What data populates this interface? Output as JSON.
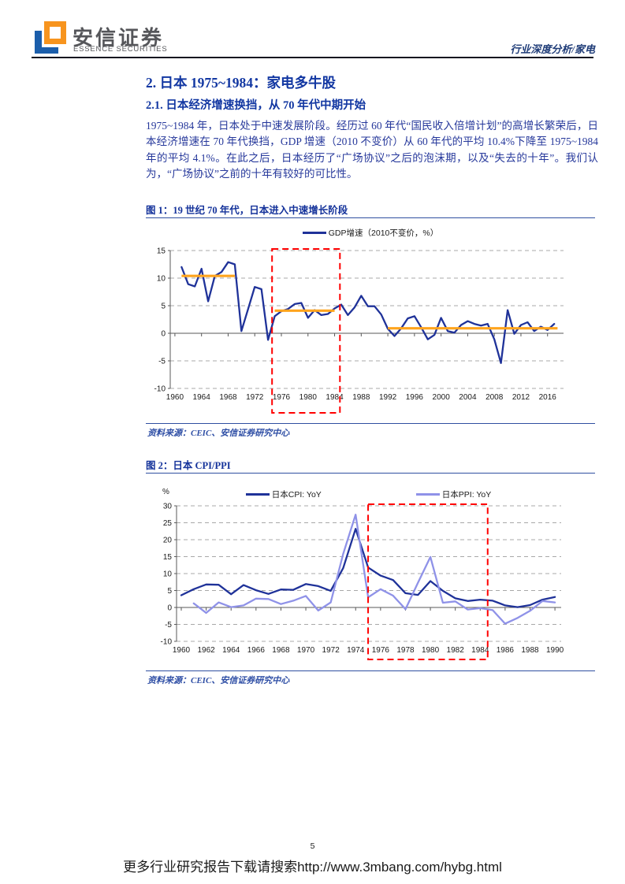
{
  "header": {
    "brand_cn": "安信证券",
    "brand_en": "ESSENCE SECURITIES",
    "doc_type": "行业深度分析/家电"
  },
  "content": {
    "section_title": "2. 日本 1975~1984：家电多牛股",
    "subsection_title": "2.1. 日本经济增速换挡，从 70 年代中期开始",
    "paragraph": "1975~1984 年，日本处于中速发展阶段。经历过 60 年代“国民收入倍增计划”的高增长繁荣后，日本经济增速在 70 年代换挡，GDP 增速（2010 不变价）从 60 年代的平均 10.4%下降至 1975~1984 年的平均 4.1%。在此之后，日本经历了“广场协议”之后的泡沫期，以及“失去的十年”。我们认为，“广场协议”之前的十年有较好的可比性。"
  },
  "figures": [
    {
      "caption": "图 1：19 世纪 70 年代，日本进入中速增长阶段",
      "source": "资料来源：CEIC、安信证券研究中心"
    },
    {
      "caption": "图 2：日本 CPI/PPI",
      "source": "资料来源：CEIC、安信证券研究中心"
    }
  ],
  "footer": {
    "page_number": "5",
    "download_note": "更多行业研究报告下载请搜索http://www.3mbang.com/hybg.html"
  },
  "chart_data": [
    {
      "type": "line",
      "title": "",
      "legend_position": "top-center",
      "grid": "horizontal-dashed",
      "ylim": [
        -10,
        15
      ],
      "yticks": [
        15,
        10,
        5,
        0,
        -5,
        -10
      ],
      "xlim": [
        1959.3,
        2018.4
      ],
      "xticks": [
        1960,
        1964,
        1968,
        1972,
        1976,
        1980,
        1984,
        1988,
        1992,
        1996,
        2000,
        2004,
        2008,
        2012,
        2016
      ],
      "series": [
        {
          "name": "GDP增速（2010不变价，%）",
          "color": "#1f3299",
          "x_start": 1961,
          "x_step": 1,
          "values": [
            12.0,
            8.9,
            8.5,
            11.7,
            5.8,
            10.4,
            11.1,
            12.9,
            12.5,
            0.4,
            4.4,
            8.4,
            8.0,
            -1.2,
            3.1,
            4.0,
            4.4,
            5.3,
            5.5,
            2.8,
            4.2,
            3.3,
            3.5,
            4.5,
            5.2,
            3.3,
            4.7,
            6.8,
            4.9,
            4.9,
            3.4,
            0.8,
            -0.5,
            0.9,
            2.7,
            3.1,
            1.1,
            -1.1,
            -0.3,
            2.8,
            0.4,
            0.1,
            1.5,
            2.2,
            1.7,
            1.4,
            1.7,
            -1.1,
            -5.4,
            4.2,
            -0.1,
            1.5,
            2.0,
            0.4,
            1.2,
            0.6,
            1.7
          ]
        }
      ],
      "avg_color": "#ffa41d",
      "avg_lines": [
        {
          "x1": 1961,
          "x2": 1969,
          "y": 10.4
        },
        {
          "x1": 1975,
          "x2": 1984,
          "y": 4.1
        },
        {
          "x1": 1992,
          "x2": 2017.5,
          "y": 0.9
        }
      ],
      "highlight_color": "#ff0000",
      "highlight_box": {
        "x1": 1974.6,
        "x2": 1984.8
      }
    },
    {
      "type": "line",
      "title": "",
      "ylabel": "%",
      "legend_position": "top-center",
      "grid": "horizontal-dashed",
      "ylim": [
        -10,
        30
      ],
      "yticks": [
        30,
        25,
        20,
        15,
        10,
        5,
        0,
        -5,
        -10
      ],
      "xlim": [
        1959.62,
        1990.5
      ],
      "xticks": [
        1960,
        1962,
        1964,
        1966,
        1968,
        1970,
        1972,
        1974,
        1976,
        1978,
        1980,
        1982,
        1984,
        1986,
        1988,
        1990
      ],
      "series": [
        {
          "name": "日本CPI: YoY",
          "color": "#1f3299",
          "x_start": 1960,
          "x_step": 1,
          "values": [
            3.6,
            5.4,
            6.8,
            6.7,
            3.9,
            6.6,
            5.1,
            4.0,
            5.3,
            5.2,
            6.9,
            6.3,
            4.9,
            11.6,
            23.2,
            11.8,
            9.4,
            8.1,
            4.2,
            3.7,
            7.8,
            4.9,
            2.7,
            1.9,
            2.3,
            2.0,
            0.6,
            0.1,
            0.7,
            2.3,
            3.1
          ]
        },
        {
          "name": "日本PPI: YoY",
          "color": "#8f92e8",
          "x_start": 1961,
          "x_step": 1,
          "values": [
            1.2,
            -1.6,
            1.5,
            0.1,
            0.6,
            2.6,
            2.5,
            1.0,
            2.0,
            3.4,
            -0.9,
            1.5,
            15.8,
            27.4,
            3.0,
            5.4,
            3.5,
            -0.5,
            7.3,
            14.9,
            1.4,
            1.8,
            -0.6,
            -0.2,
            -0.8,
            -4.8,
            -3.1,
            -1.0,
            1.9,
            1.5
          ]
        }
      ],
      "highlight_color": "#ff0000",
      "highlight_box": {
        "x1": 1975.0,
        "x2": 1984.6
      }
    }
  ]
}
